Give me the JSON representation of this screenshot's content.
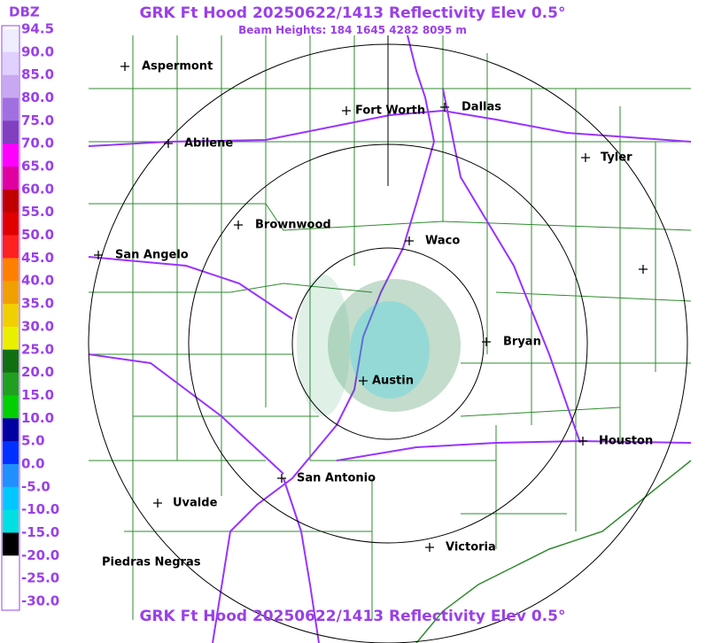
{
  "header": {
    "title": "GRK Ft Hood 20250622/1413 Reflectivity Elev 0.5°",
    "subtitle": "Beam Heights: 184 1645 4282 8095 m"
  },
  "legend": {
    "title": "DBZ",
    "labels": [
      "94.5",
      "90.0",
      "85.0",
      "80.0",
      "75.0",
      "70.0",
      "65.0",
      "60.0",
      "55.0",
      "50.0",
      "45.0",
      "40.0",
      "35.0",
      "30.0",
      "25.0",
      "20.0",
      "15.0",
      "10.0",
      "5.0",
      "0.0",
      "-5.0",
      "-10.0",
      "-15.0",
      "-20.0",
      "-25.0",
      "-30.0"
    ]
  },
  "cities": [
    {
      "label": "Aspermont"
    },
    {
      "label": "Abilene"
    },
    {
      "label": "Fort Worth"
    },
    {
      "label": "Dallas"
    },
    {
      "label": "Tyler"
    },
    {
      "label": "Brownwood"
    },
    {
      "label": "Waco"
    },
    {
      "label": "San Angelo"
    },
    {
      "label": "Bryan"
    },
    {
      "label": "Austin"
    },
    {
      "label": "Houston"
    },
    {
      "label": "San Antonio"
    },
    {
      "label": "Uvalde"
    },
    {
      "label": "Victoria"
    },
    {
      "label": "Piedras Negras"
    }
  ],
  "footer": {
    "title": "GRK Ft Hood 20250622/1413 Reflectivity Elev 0.5°"
  }
}
